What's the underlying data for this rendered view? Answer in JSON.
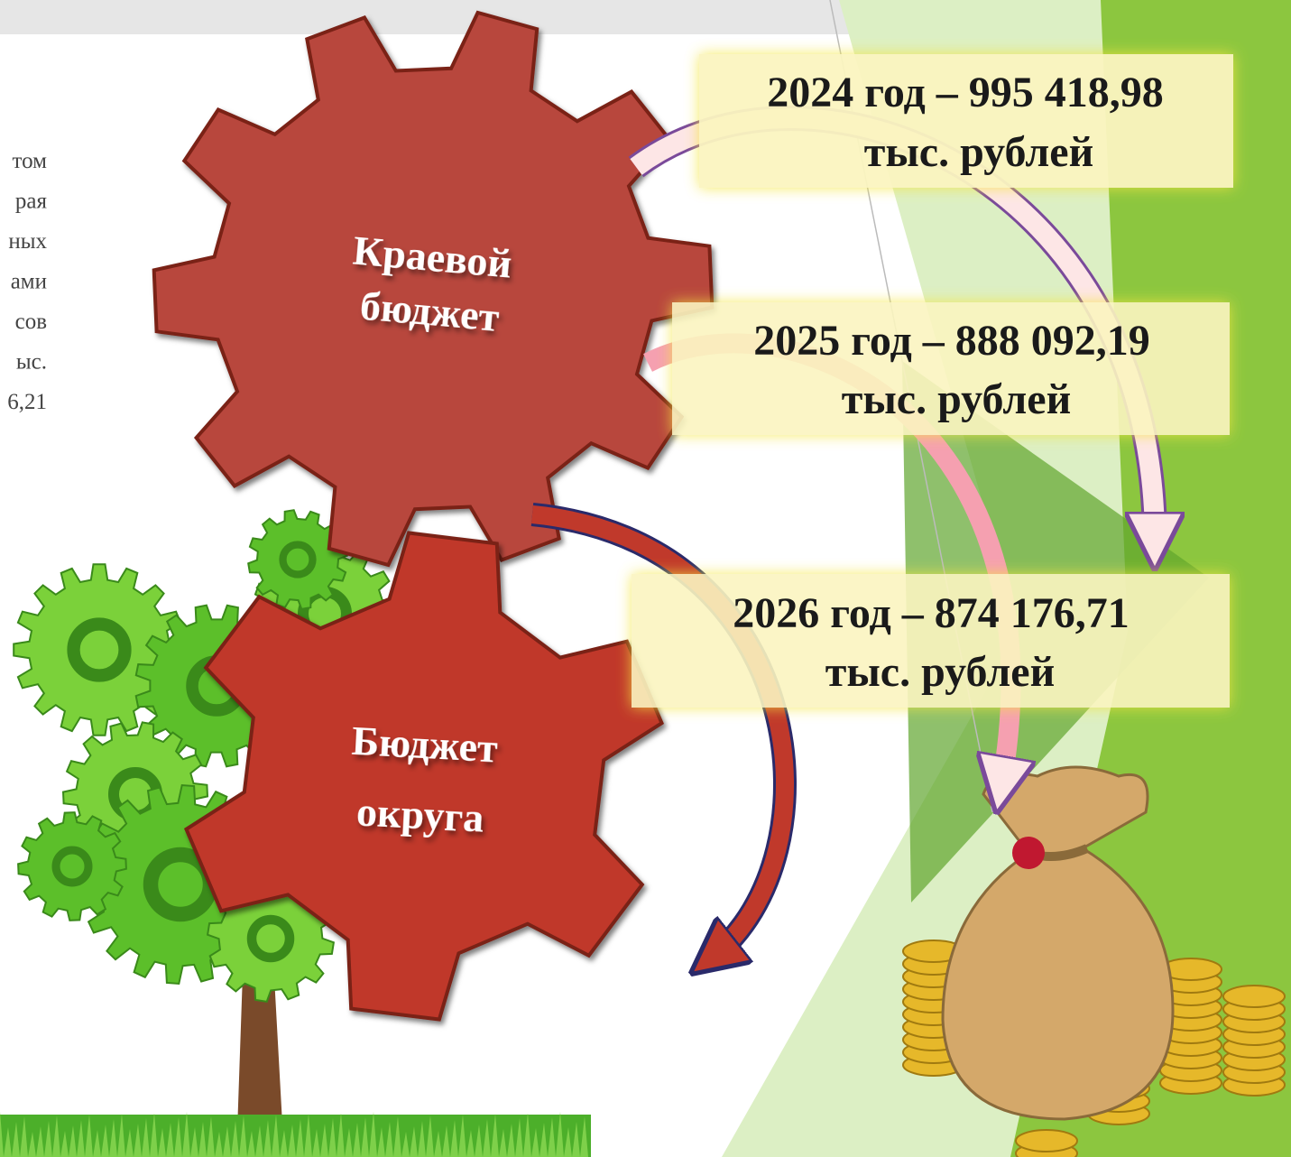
{
  "side_text": [
    "том",
    "рая",
    "ных",
    "ами",
    "сов",
    "ыс.",
    "6,21"
  ],
  "gears": [
    {
      "label_lines": [
        "Краевой",
        "бюджет"
      ]
    },
    {
      "label_lines": [
        "Бюджет",
        "округа"
      ]
    }
  ],
  "boxes": [
    {
      "lines": [
        "2024 год – 995 418,98",
        "тыс. рублей"
      ]
    },
    {
      "lines": [
        "2025 год – 888 092,19",
        "тыс. рублей"
      ]
    },
    {
      "lines": [
        "2026 год – 874 176,71",
        "тыс. рублей"
      ]
    }
  ]
}
